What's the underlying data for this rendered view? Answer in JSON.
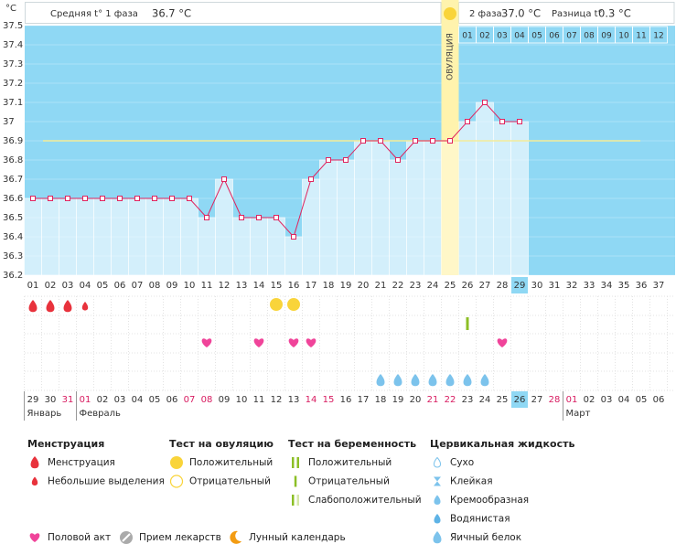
{
  "chart_data": {
    "type": "line",
    "y_label": "°C",
    "phase1_label": "Средняя t° 1 фаза",
    "phase1_avg": "36.7 °C",
    "phase2_label": "2 фаза",
    "phase2_avg": "37.0 °C",
    "diff_label": "Разница t°",
    "diff_value": "0.3 °C",
    "categories": [
      "01",
      "02",
      "03",
      "04",
      "05",
      "06",
      "07",
      "08",
      "09",
      "10",
      "11",
      "12",
      "13",
      "14",
      "15",
      "16",
      "17",
      "18",
      "19",
      "20",
      "21",
      "22",
      "23",
      "24",
      "25",
      "26",
      "27",
      "28",
      "29",
      "30",
      "31",
      "32",
      "33",
      "34",
      "35",
      "36",
      "37"
    ],
    "values": [
      36.6,
      36.6,
      36.6,
      36.6,
      36.6,
      36.6,
      36.6,
      36.6,
      36.6,
      36.6,
      36.5,
      36.7,
      36.5,
      36.5,
      36.5,
      36.4,
      36.7,
      36.8,
      36.8,
      36.9,
      36.9,
      36.8,
      36.9,
      36.9,
      36.9,
      37.0,
      37.1,
      37.0,
      37.0,
      null,
      null,
      null,
      null,
      null,
      null,
      null,
      null
    ],
    "ylim": [
      36.2,
      37.5
    ],
    "yticks": [
      36.2,
      36.3,
      36.4,
      36.5,
      36.6,
      36.7,
      36.8,
      36.9,
      37,
      37.1,
      37.2,
      37.3,
      37.4,
      37.5
    ],
    "coverline": 36.9,
    "ovulation_day": 25,
    "ovulation_label": "ОВУЛЯЦИЯ",
    "today_day": 29,
    "phase2_days": [
      "01",
      "02",
      "03",
      "04",
      "05",
      "06",
      "07",
      "08",
      "09",
      "10",
      "11",
      "12"
    ],
    "line_color": "#e0245e",
    "bar_color": "#d3effb",
    "background_color": "#8fd8f4",
    "dates": [
      "29",
      "30",
      "31",
      "01",
      "02",
      "03",
      "04",
      "05",
      "06",
      "07",
      "08",
      "09",
      "10",
      "11",
      "12",
      "13",
      "14",
      "15",
      "16",
      "17",
      "18",
      "19",
      "20",
      "21",
      "22",
      "23",
      "24",
      "25",
      "26",
      "27",
      "28",
      "01",
      "02",
      "03",
      "04",
      "05",
      "06"
    ],
    "weekend_dates": [
      2,
      3,
      9,
      10,
      16,
      17,
      23,
      24,
      30,
      31
    ],
    "months": [
      "Январь",
      "Февраль",
      "Март"
    ],
    "month_starts": [
      1,
      4,
      32
    ],
    "events": {
      "menstruation": [
        1,
        2,
        3
      ],
      "spotting": [
        4
      ],
      "ovulation_test_positive": [
        15,
        16
      ],
      "pregnancy_test_negative": [
        26
      ],
      "intercourse": [
        11,
        14,
        16,
        17,
        28
      ],
      "egg_white": [
        21,
        22,
        23,
        24,
        25,
        26,
        27
      ]
    }
  },
  "legend": {
    "groups": [
      {
        "title": "Менструация",
        "items": [
          "Менструация",
          "Небольшие выделения"
        ]
      },
      {
        "title": "Тест на овуляцию",
        "items": [
          "Положительный",
          "Отрицательный"
        ]
      },
      {
        "title": "Тест на беременность",
        "items": [
          "Положительный",
          "Отрицательный",
          "Слабоположительный"
        ]
      },
      {
        "title": "Цервикальная жидкость",
        "items": [
          "Сухо",
          "Клейкая",
          "Кремообразная",
          "Водянистая",
          "Яичный белок"
        ]
      }
    ],
    "bottom": [
      "Половой акт",
      "Прием лекарств",
      "Лунный календарь"
    ]
  }
}
